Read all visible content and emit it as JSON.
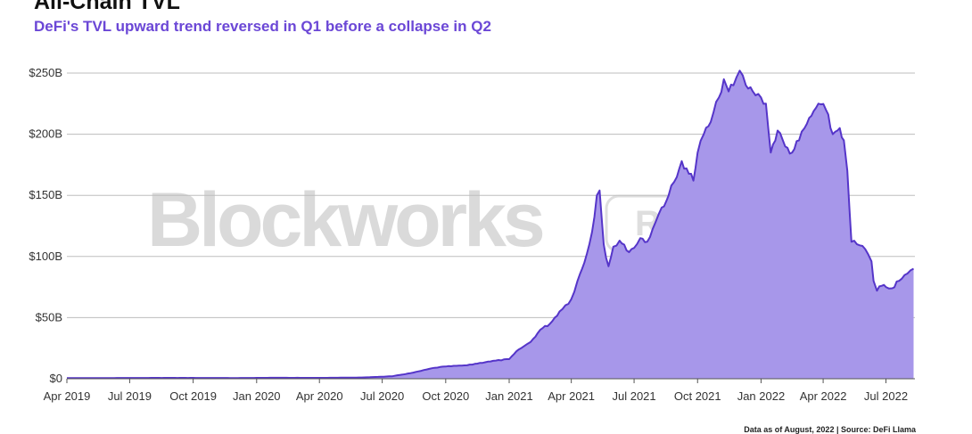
{
  "title": "All-Chain TVL",
  "subtitle": "DeFi's TVL upward trend reversed in Q1 before a collapse in Q2",
  "footnote": "Data as of August, 2022 | Source: DeFi Llama",
  "watermark": {
    "brand": "Blockworks",
    "badge": "Research"
  },
  "colors": {
    "line": "#5535c9",
    "fill": "#a797ea",
    "grid": "#bdbdbd",
    "subtitle": "#6b47d6"
  },
  "chart_data": {
    "type": "area",
    "title": "All-Chain TVL",
    "subtitle": "DeFi's TVL upward trend reversed in Q1 before a collapse in Q2",
    "xlabel": "",
    "ylabel": "",
    "unit": "USD billions",
    "ylim": [
      0,
      250
    ],
    "xlim": [
      "2019-04-01",
      "2022-08-12"
    ],
    "grid": true,
    "legend": "none",
    "yticks": [
      {
        "value": 0,
        "label": "$0"
      },
      {
        "value": 50,
        "label": "$50B"
      },
      {
        "value": 100,
        "label": "$100B"
      },
      {
        "value": 150,
        "label": "$150B"
      },
      {
        "value": 200,
        "label": "$200B"
      },
      {
        "value": 250,
        "label": "$250B"
      }
    ],
    "xticks": [
      {
        "value": "2019-04-01",
        "label": "Apr 2019"
      },
      {
        "value": "2019-07-01",
        "label": "Jul 2019"
      },
      {
        "value": "2019-10-01",
        "label": "Oct 2019"
      },
      {
        "value": "2020-01-01",
        "label": "Jan 2020"
      },
      {
        "value": "2020-04-01",
        "label": "Apr 2020"
      },
      {
        "value": "2020-07-01",
        "label": "Jul 2020"
      },
      {
        "value": "2020-10-01",
        "label": "Oct 2020"
      },
      {
        "value": "2021-01-01",
        "label": "Jan 2021"
      },
      {
        "value": "2021-04-01",
        "label": "Apr 2021"
      },
      {
        "value": "2021-07-01",
        "label": "Jul 2021"
      },
      {
        "value": "2021-10-01",
        "label": "Oct 2021"
      },
      {
        "value": "2022-01-01",
        "label": "Jan 2022"
      },
      {
        "value": "2022-04-01",
        "label": "Apr 2022"
      },
      {
        "value": "2022-07-01",
        "label": "Jul 2022"
      }
    ],
    "series": [
      {
        "x": [
          "2019-04-01",
          "2019-06-01",
          "2019-08-01",
          "2019-10-01",
          "2019-12-01",
          "2020-02-01",
          "2020-04-01",
          "2020-06-01",
          "2020-07-15",
          "2020-08-15",
          "2020-09-15",
          "2020-10-01",
          "2020-11-01",
          "2020-12-01",
          "2021-01-01",
          "2021-01-15",
          "2021-02-01",
          "2021-02-15",
          "2021-03-01",
          "2021-03-15",
          "2021-04-01",
          "2021-04-10",
          "2021-04-20",
          "2021-05-01",
          "2021-05-08",
          "2021-05-12",
          "2021-05-18",
          "2021-05-25",
          "2021-06-01",
          "2021-06-10",
          "2021-06-20",
          "2021-07-01",
          "2021-07-10",
          "2021-07-20",
          "2021-08-01",
          "2021-08-10",
          "2021-08-20",
          "2021-09-01",
          "2021-09-08",
          "2021-09-15",
          "2021-09-25",
          "2021-10-01",
          "2021-10-10",
          "2021-10-20",
          "2021-11-01",
          "2021-11-08",
          "2021-11-15",
          "2021-11-22",
          "2021-12-01",
          "2021-12-10",
          "2021-12-20",
          "2022-01-01",
          "2022-01-08",
          "2022-01-15",
          "2022-01-25",
          "2022-02-05",
          "2022-02-15",
          "2022-02-25",
          "2022-03-05",
          "2022-03-15",
          "2022-03-25",
          "2022-04-05",
          "2022-04-15",
          "2022-04-25",
          "2022-05-01",
          "2022-05-06",
          "2022-05-09",
          "2022-05-12",
          "2022-05-20",
          "2022-06-01",
          "2022-06-10",
          "2022-06-13",
          "2022-06-18",
          "2022-06-25",
          "2022-07-01",
          "2022-07-10",
          "2022-07-20",
          "2022-08-01",
          "2022-08-10"
        ],
        "values": [
          0.5,
          0.6,
          0.7,
          0.7,
          0.6,
          0.8,
          0.7,
          1.0,
          2.0,
          5.0,
          9.0,
          10.0,
          11.0,
          14.0,
          16.0,
          24.0,
          30.0,
          40.0,
          45.0,
          55.0,
          65.0,
          80.0,
          95.0,
          120.0,
          150.0,
          154.0,
          110.0,
          92.0,
          108.0,
          113.0,
          105.0,
          107.0,
          115.0,
          112.0,
          128.0,
          140.0,
          150.0,
          165.0,
          178.0,
          172.0,
          162.0,
          185.0,
          200.0,
          210.0,
          230.0,
          245.0,
          235.0,
          240.0,
          252.0,
          240.0,
          235.0,
          230.0,
          225.0,
          185.0,
          203.0,
          190.0,
          185.0,
          195.0,
          205.0,
          215.0,
          225.0,
          220.0,
          200.0,
          205.0,
          195.0,
          170.0,
          140.0,
          112.0,
          110.0,
          106.0,
          96.0,
          80.0,
          72.0,
          76.0,
          75.0,
          74.0,
          80.0,
          86.0,
          90.0
        ]
      }
    ]
  }
}
